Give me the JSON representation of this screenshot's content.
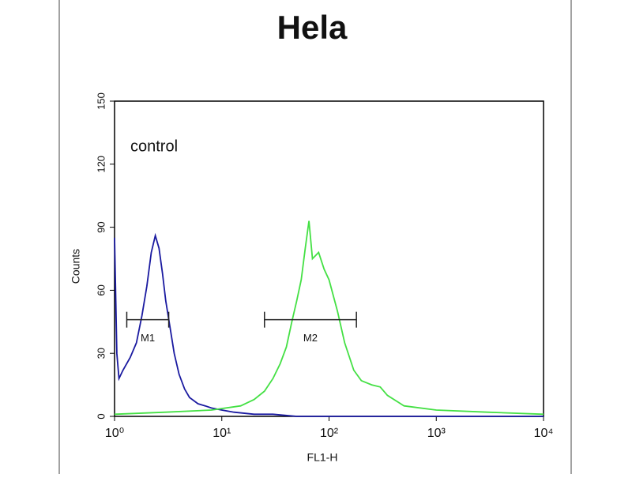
{
  "chart_data": {
    "type": "line",
    "title": "Hela",
    "xlabel": "FL1-H",
    "ylabel": "Counts",
    "annotation": "control",
    "xscale": "log",
    "xlim": [
      1,
      10000
    ],
    "xticks": [
      {
        "value": 1,
        "label": "10⁰"
      },
      {
        "value": 10,
        "label": "10¹"
      },
      {
        "value": 100,
        "label": "10²"
      },
      {
        "value": 1000,
        "label": "10³"
      },
      {
        "value": 10000,
        "label": "10⁴"
      }
    ],
    "ylim": [
      0,
      150
    ],
    "yticks": [
      0,
      30,
      60,
      90,
      120,
      150
    ],
    "series": [
      {
        "color": "#1a1aa0",
        "x": [
          1,
          1.05,
          1.1,
          1.2,
          1.4,
          1.6,
          1.8,
          2.0,
          2.2,
          2.4,
          2.6,
          2.8,
          3.0,
          3.3,
          3.6,
          4,
          4.5,
          5,
          6,
          7,
          8,
          10,
          13,
          20,
          30,
          50,
          100,
          300,
          1000,
          10000
        ],
        "values": [
          85,
          30,
          18,
          22,
          28,
          35,
          48,
          62,
          78,
          86,
          80,
          68,
          55,
          42,
          30,
          20,
          13,
          9,
          6,
          5,
          4,
          3,
          2,
          1,
          1,
          0,
          0,
          0,
          0,
          0
        ]
      },
      {
        "color": "#44e044",
        "x": [
          1,
          3,
          8,
          15,
          20,
          25,
          30,
          35,
          40,
          45,
          50,
          55,
          60,
          65,
          70,
          80,
          90,
          100,
          120,
          140,
          170,
          200,
          250,
          300,
          350,
          500,
          1000,
          3000,
          10000
        ],
        "values": [
          1,
          2,
          3,
          5,
          8,
          12,
          18,
          25,
          33,
          45,
          55,
          65,
          80,
          93,
          75,
          78,
          70,
          65,
          50,
          35,
          22,
          17,
          15,
          14,
          10,
          5,
          3,
          2,
          1
        ]
      }
    ],
    "markers": [
      {
        "label": "M1",
        "x": [
          1.3,
          3.2
        ],
        "y": 46
      },
      {
        "label": "M2",
        "x": [
          25,
          180
        ],
        "y": 46
      }
    ]
  }
}
